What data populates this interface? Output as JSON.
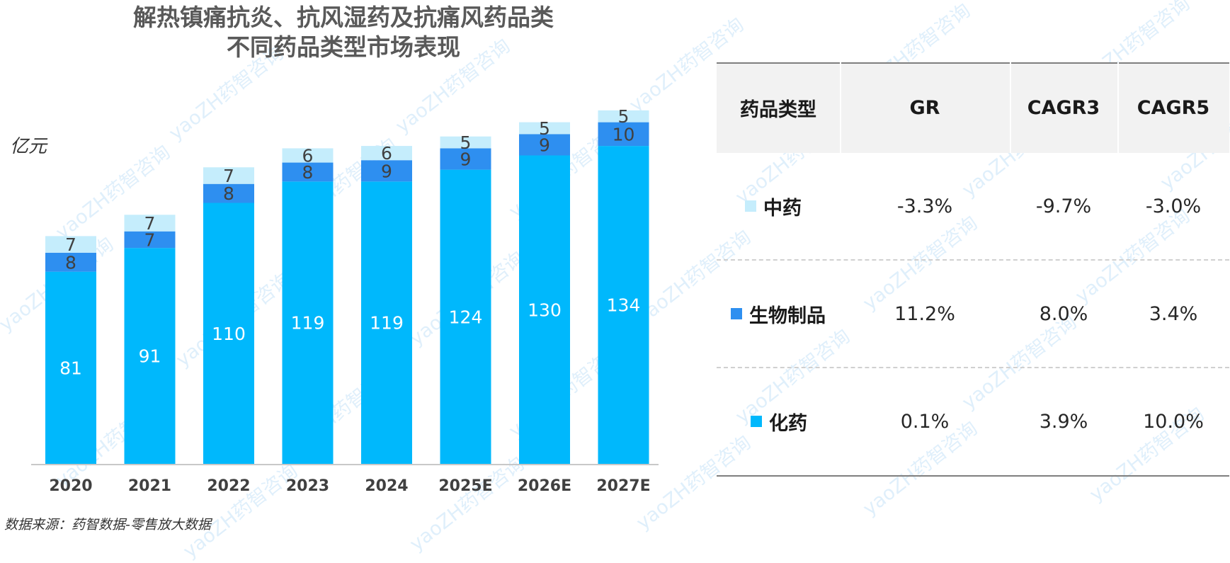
{
  "title_lines": [
    "解热镇痛抗炎、抗风湿药及抗痛风药品类",
    "不同药品类型市场表现"
  ],
  "unit": "亿元",
  "source": "数据来源：药智数据-零售放大数据",
  "watermark": "yaoZH药智咨询",
  "colors": {
    "chem": "#00b8fc",
    "bio": "#2e8ff0",
    "tcm": "#c5edfc"
  },
  "chart_data": {
    "type": "bar",
    "stacked": true,
    "categories": [
      "2020",
      "2021",
      "2022",
      "2023",
      "2024",
      "2025E",
      "2026E",
      "2027E"
    ],
    "series": [
      {
        "name": "化药",
        "values": [
          81,
          91,
          110,
          119,
          119,
          124,
          130,
          134
        ]
      },
      {
        "name": "生物制品",
        "values": [
          8,
          7,
          8,
          8,
          9,
          9,
          9,
          10
        ]
      },
      {
        "name": "中药",
        "values": [
          7,
          7,
          7,
          6,
          6,
          5,
          5,
          5
        ]
      }
    ],
    "ylabel": "亿元",
    "grid": false
  },
  "table": {
    "headers": [
      "药品类型",
      "GR",
      "CAGR3",
      "CAGR5"
    ],
    "rows": [
      {
        "name": "中药",
        "color": "#c5edfc",
        "GR": "-3.3%",
        "CAGR3": "-9.7%",
        "CAGR5": "-3.0%"
      },
      {
        "name": "生物制品",
        "color": "#2e8ff0",
        "GR": "11.2%",
        "CAGR3": "8.0%",
        "CAGR5": "3.4%"
      },
      {
        "name": "化药",
        "color": "#00b8fc",
        "GR": "0.1%",
        "CAGR3": "3.9%",
        "CAGR5": "10.0%"
      }
    ]
  }
}
